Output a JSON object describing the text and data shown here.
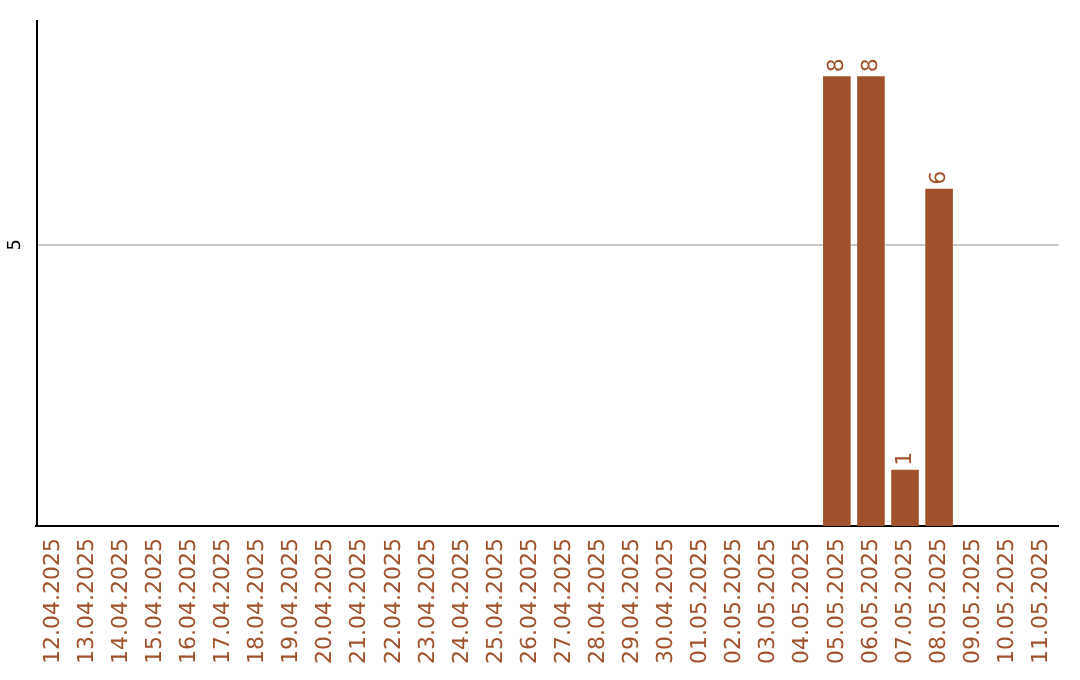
{
  "chart_data": {
    "type": "bar",
    "tick_labels": "x",
    "data_labels": true,
    "categories": [
      "12.04.2025",
      "13.04.2025",
      "14.04.2025",
      "15.04.2025",
      "16.04.2025",
      "17.04.2025",
      "18.04.2025",
      "19.04.2025",
      "20.04.2025",
      "21.04.2025",
      "22.04.2025",
      "23.04.2025",
      "24.04.2025",
      "25.04.2025",
      "26.04.2025",
      "27.04.2025",
      "28.04.2025",
      "29.04.2025",
      "30.04.2025",
      "01.05.2025",
      "02.05.2025",
      "03.05.2025",
      "04.05.2025",
      "05.05.2025",
      "06.05.2025",
      "07.05.2025",
      "08.05.2025",
      "09.05.2025",
      "10.05.2025",
      "11.05.2025"
    ],
    "values": [
      null,
      null,
      null,
      null,
      null,
      null,
      null,
      null,
      null,
      null,
      null,
      null,
      null,
      null,
      null,
      null,
      null,
      null,
      null,
      null,
      null,
      null,
      null,
      8,
      8,
      1,
      6,
      null,
      null,
      null
    ],
    "color": "#a0522d",
    "ref_lines": [
      {
        "axis": "y",
        "value": 5,
        "label": "5",
        "color": "#c8c8c8"
      }
    ],
    "legend": false
  }
}
